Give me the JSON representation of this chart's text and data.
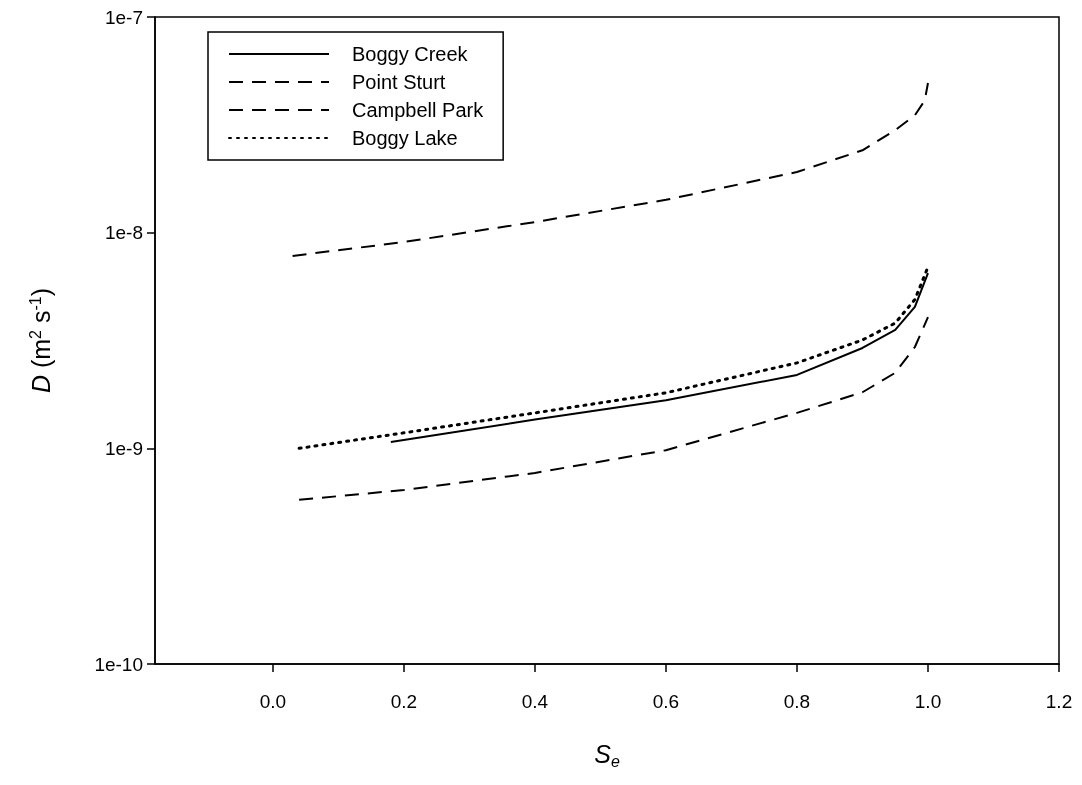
{
  "chart_data": {
    "type": "line",
    "xlabel": "S$_{e}$",
    "ylabel": "D (m$^{2}$ s$^{-1}$)",
    "log": "y",
    "xlim": [
      -0.18,
      1.2
    ],
    "xticks": [
      {
        "value": 0,
        "label": "0.0"
      },
      0.2,
      0.4,
      0.6,
      0.8,
      {
        "value": 1,
        "label": "1.0"
      },
      1.2
    ],
    "ylim": [
      1e-10,
      1e-07
    ],
    "yticks": [
      {
        "value": 1e-10,
        "label": "1e-10"
      },
      {
        "value": 1e-09,
        "label": "1e-9"
      },
      {
        "value": 1e-08,
        "label": "1e-8"
      },
      {
        "value": 1e-07,
        "label": "1e-7"
      }
    ],
    "grid": false,
    "legend": "top left",
    "marker": "none",
    "series": [
      {
        "name": "Boggy Creek",
        "color": "#000000",
        "line_style": "solid",
        "x": [
          0.18,
          0.4,
          0.6,
          0.8,
          0.9,
          0.95,
          0.98,
          1.0
        ],
        "values": [
          1.07e-09,
          1.36e-09,
          1.67e-09,
          2.19e-09,
          2.92e-09,
          3.54e-09,
          4.53e-09,
          6.5e-09
        ]
      },
      {
        "name": "Point Sturt",
        "color": "#000000",
        "line_style": "dashed",
        "x": [
          0.03,
          0.2,
          0.4,
          0.6,
          0.8,
          0.9,
          0.95,
          0.98,
          0.995,
          1.0
        ],
        "values": [
          7.8e-09,
          9.05e-09,
          1.12e-08,
          1.42e-08,
          1.91e-08,
          2.41e-08,
          2.99e-08,
          3.5e-08,
          4.1e-08,
          4.94e-08
        ]
      },
      {
        "name": "Campbell Park",
        "color": "#000000",
        "line_style": "dashed",
        "x": [
          0.04,
          0.2,
          0.4,
          0.6,
          0.8,
          0.9,
          0.95,
          0.98,
          1.0
        ],
        "values": [
          5.77e-10,
          6.41e-10,
          7.69e-10,
          9.8e-10,
          1.46e-09,
          1.82e-09,
          2.24e-09,
          2.95e-09,
          4.06e-09
        ]
      },
      {
        "name": "Boggy Lake",
        "color": "#000000",
        "line_style": "dotted",
        "x": [
          0.04,
          0.2,
          0.4,
          0.6,
          0.8,
          0.9,
          0.95,
          0.98,
          1.0
        ],
        "values": [
          1e-09,
          1.18e-09,
          1.46e-09,
          1.81e-09,
          2.49e-09,
          3.18e-09,
          3.81e-09,
          4.9e-09,
          6.93e-09
        ]
      }
    ]
  }
}
